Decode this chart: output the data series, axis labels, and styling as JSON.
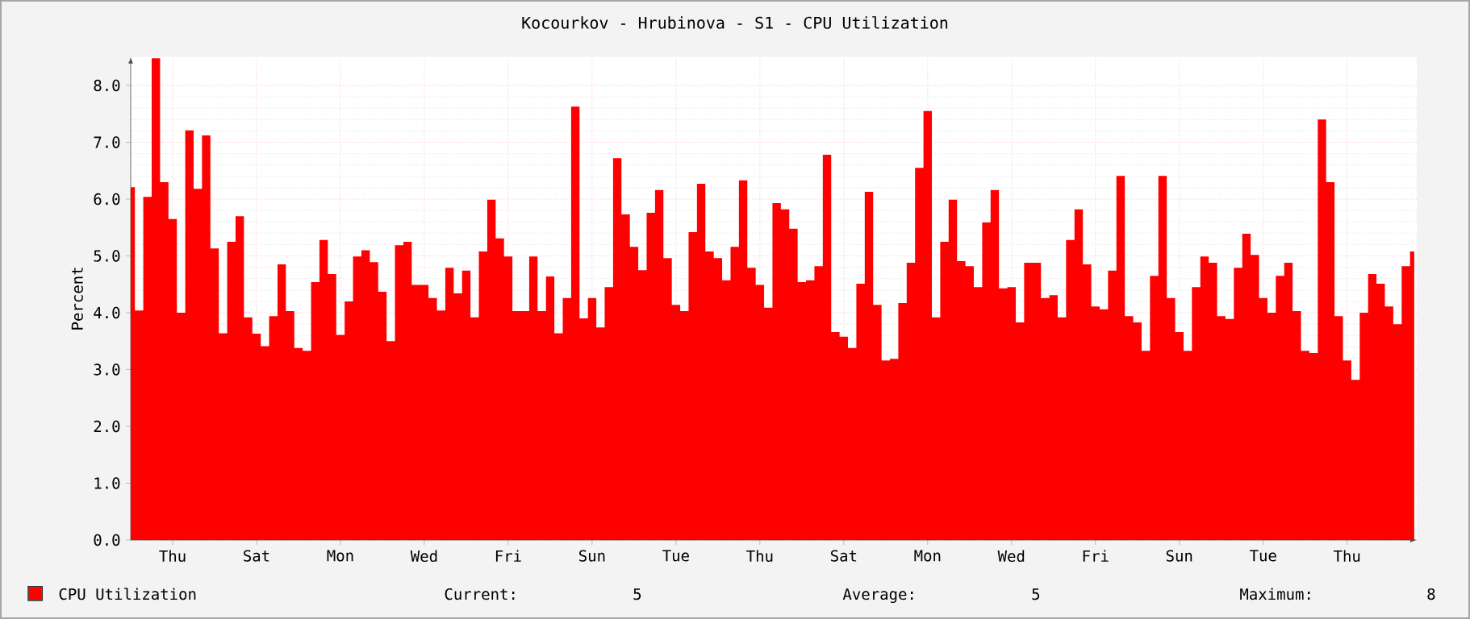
{
  "chart_data": {
    "type": "area",
    "title": "Kocourkov - Hrubinova - S1 - CPU Utilization",
    "ylabel": "Percent",
    "categories": [
      null,
      null,
      null,
      null,
      null,
      "Thu",
      null,
      null,
      null,
      null,
      null,
      null,
      null,
      null,
      null,
      "Sat",
      null,
      null,
      null,
      null,
      null,
      null,
      null,
      null,
      null,
      "Mon",
      null,
      null,
      null,
      null,
      null,
      null,
      null,
      null,
      null,
      "Wed",
      null,
      null,
      null,
      null,
      null,
      null,
      null,
      null,
      null,
      "Fri",
      null,
      null,
      null,
      null,
      null,
      null,
      null,
      null,
      null,
      "Sun",
      null,
      null,
      null,
      null,
      null,
      null,
      null,
      null,
      null,
      "Tue",
      null,
      null,
      null,
      null,
      null,
      null,
      null,
      null,
      null,
      "Thu",
      null,
      null,
      null,
      null,
      null,
      null,
      null,
      null,
      null,
      "Sat",
      null,
      null,
      null,
      null,
      null,
      null,
      null,
      null,
      null,
      "Mon",
      null,
      null,
      null,
      null,
      null,
      null,
      null,
      null,
      null,
      "Wed",
      null,
      null,
      null,
      null,
      null,
      null,
      null,
      null,
      null,
      "Fri",
      null,
      null,
      null,
      null,
      null,
      null,
      null,
      null,
      null,
      "Sun",
      null,
      null,
      null,
      null,
      null,
      null,
      null,
      null,
      null,
      "Tue",
      null,
      null,
      null,
      null,
      null,
      null,
      null,
      null,
      null,
      "Thu",
      null,
      null,
      null,
      null,
      null,
      null,
      null,
      null
    ],
    "series": [
      {
        "name": "CPU Utilization",
        "color": "#ff0000",
        "values": [
          6.21,
          4.04,
          6.04,
          8.48,
          6.3,
          5.65,
          4.0,
          7.21,
          6.18,
          7.12,
          5.13,
          3.64,
          5.25,
          5.7,
          3.92,
          3.63,
          3.41,
          3.94,
          4.85,
          4.03,
          3.38,
          3.33,
          4.54,
          5.28,
          4.68,
          3.61,
          4.2,
          4.99,
          5.1,
          4.89,
          4.37,
          3.5,
          5.19,
          5.25,
          4.49,
          4.49,
          4.26,
          4.04,
          4.79,
          4.34,
          4.74,
          3.92,
          5.08,
          5.99,
          5.31,
          4.99,
          4.03,
          4.03,
          4.99,
          4.03,
          4.64,
          3.64,
          4.26,
          7.63,
          3.9,
          4.26,
          3.74,
          4.45,
          6.72,
          5.73,
          5.16,
          4.75,
          5.76,
          6.16,
          4.96,
          4.14,
          4.03,
          5.42,
          6.27,
          5.08,
          4.96,
          4.57,
          5.16,
          6.33,
          4.79,
          4.49,
          4.09,
          5.93,
          5.82,
          5.48,
          4.54,
          4.57,
          4.82,
          6.78,
          3.66,
          3.58,
          3.38,
          4.51,
          6.13,
          4.14,
          3.16,
          3.19,
          4.17,
          4.88,
          6.55,
          7.55,
          3.92,
          5.25,
          5.99,
          4.91,
          4.82,
          4.45,
          5.59,
          6.16,
          4.43,
          4.45,
          3.83,
          4.88,
          4.88,
          4.26,
          4.31,
          3.92,
          5.28,
          5.82,
          4.85,
          4.11,
          4.06,
          4.74,
          6.41,
          3.94,
          3.83,
          3.33,
          4.65,
          6.41,
          4.26,
          3.66,
          3.33,
          4.45,
          4.99,
          4.88,
          3.94,
          3.89,
          4.79,
          5.39,
          5.02,
          4.26,
          4.0,
          4.65,
          4.88,
          4.03,
          3.33,
          3.29,
          7.4,
          6.3,
          3.94,
          3.16,
          2.82,
          4.0,
          4.68,
          4.51,
          4.11,
          3.8,
          4.82,
          5.08
        ]
      }
    ],
    "ylim": [
      0,
      8.5
    ],
    "yticks": [
      {
        "value": 0,
        "label": "0.0"
      },
      {
        "value": 1,
        "label": "1.0"
      },
      {
        "value": 2,
        "label": "2.0"
      },
      {
        "value": 3,
        "label": "3.0"
      },
      {
        "value": 4,
        "label": "4.0"
      },
      {
        "value": 5,
        "label": "5.0"
      },
      {
        "value": 6,
        "label": "6.0"
      },
      {
        "value": 7,
        "label": "7.0"
      },
      {
        "value": 8,
        "label": "8.0"
      }
    ],
    "grid": true,
    "legend": "bottom",
    "annotations": [
      "Current:",
      "5",
      "Average:",
      "5",
      "Maximum:",
      "8"
    ]
  }
}
